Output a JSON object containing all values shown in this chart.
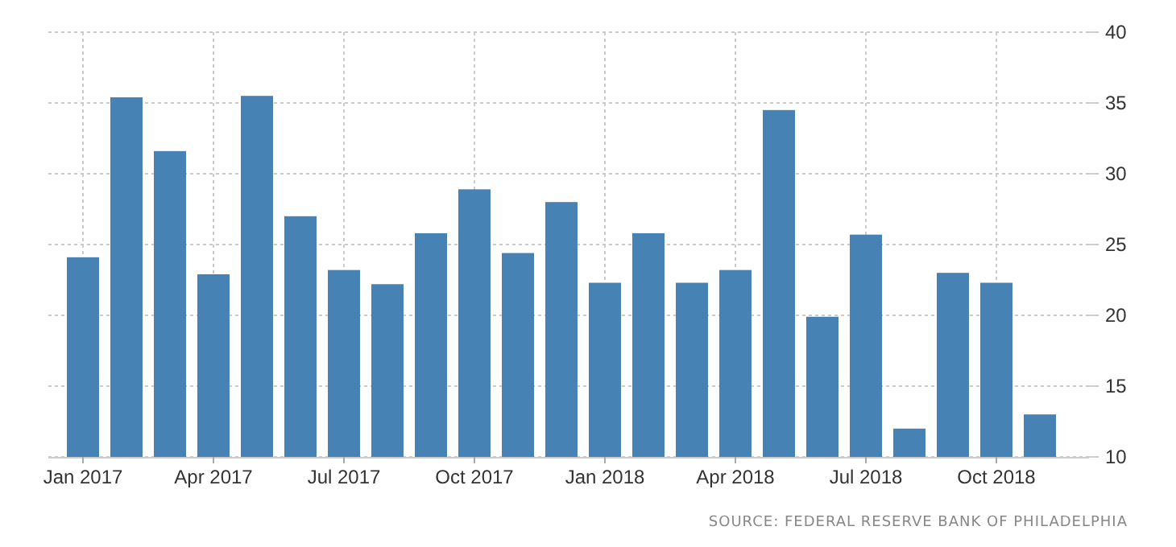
{
  "chart_data": {
    "type": "bar",
    "categories": [
      "Jan 2017",
      null,
      null,
      "Apr 2017",
      null,
      null,
      "Jul 2017",
      null,
      null,
      "Oct 2017",
      null,
      null,
      "Jan 2018",
      null,
      null,
      "Apr 2018",
      null,
      null,
      "Jul 2018",
      null,
      null,
      "Oct 2018",
      null
    ],
    "values": [
      24.1,
      35.4,
      31.6,
      22.9,
      35.5,
      27.0,
      23.2,
      22.2,
      25.8,
      28.9,
      24.4,
      28.0,
      22.3,
      25.8,
      22.3,
      23.2,
      34.5,
      19.9,
      25.7,
      12.0,
      23.0,
      22.3,
      13.0
    ],
    "color": "#4682b4",
    "ylim": [
      10,
      40
    ],
    "yticks": [
      10,
      15,
      20,
      25,
      30,
      35,
      40
    ],
    "grid": true,
    "annotations": [
      "SOURCE: FEDERAL RESERVE BANK OF PHILADELPHIA"
    ]
  }
}
